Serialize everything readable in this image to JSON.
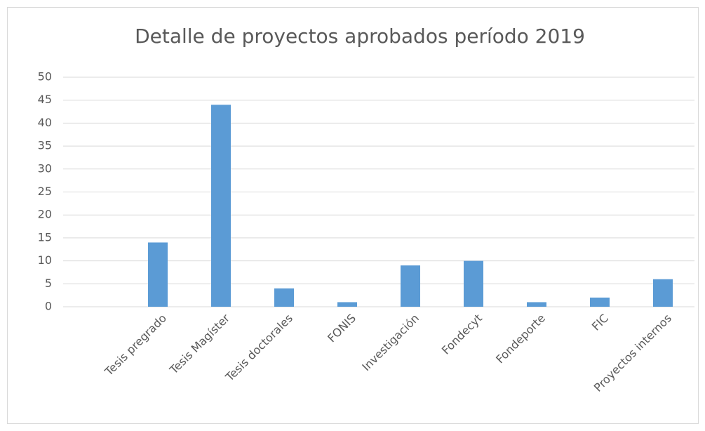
{
  "chart_data": {
    "type": "bar",
    "title": "Detalle de proyectos aprobados período 2019",
    "categories": [
      null,
      "Tesis pregrado",
      "Tesis Magíster",
      "Tesis doctorales",
      "FONIS",
      "Investigación",
      "Fondecyt",
      "Fondeporte",
      "FIC",
      "Proyectos internos"
    ],
    "values": [
      null,
      14,
      44,
      4,
      1,
      9,
      10,
      1,
      2,
      6
    ],
    "color": "#5b9bd5",
    "ylim": [
      0,
      50
    ],
    "yticks": [
      0,
      5,
      10,
      15,
      20,
      25,
      30,
      35,
      40,
      45,
      50
    ],
    "grid": true
  }
}
